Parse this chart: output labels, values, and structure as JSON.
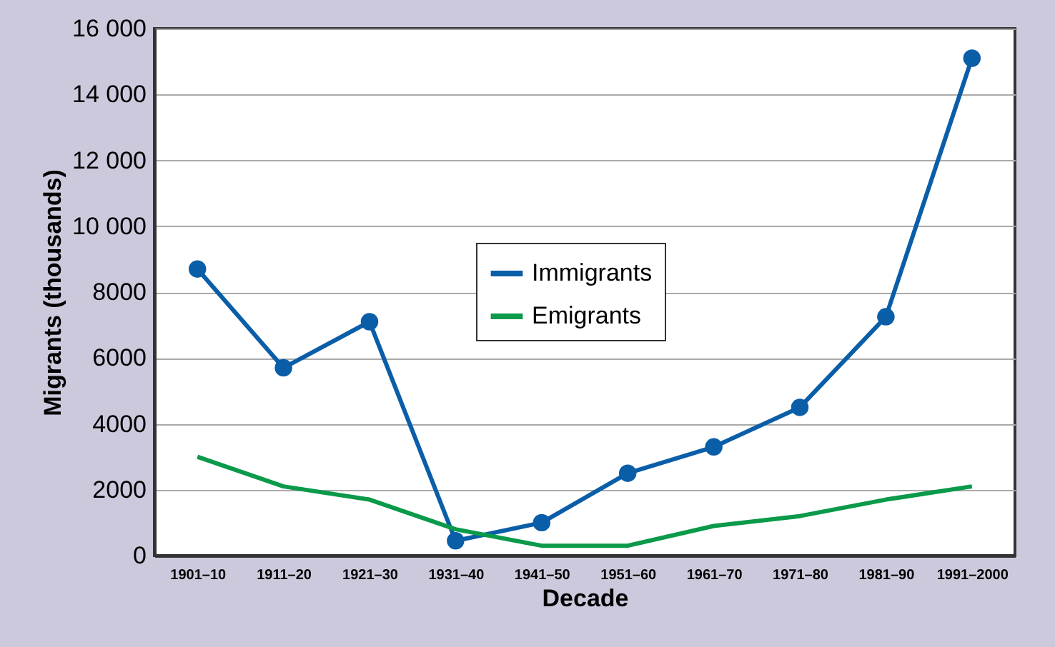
{
  "chart_data": {
    "type": "line",
    "xlabel": "Decade",
    "ylabel": "Migrants (thousands)",
    "categories": [
      "1901–10",
      "1911–20",
      "1921–30",
      "1931–40",
      "1941–50",
      "1951–60",
      "1961–70",
      "1971–80",
      "1981–90",
      "1991–2000"
    ],
    "series": [
      {
        "name": "Immigrants",
        "color": "#0a5ea8",
        "marker": "circle",
        "values": [
          8700,
          5700,
          7100,
          450,
          1000,
          2500,
          3300,
          4500,
          7250,
          15100
        ]
      },
      {
        "name": "Emigrants",
        "color": "#0a9a4a",
        "marker": "none",
        "values": [
          3000,
          2100,
          1700,
          800,
          300,
          300,
          900,
          1200,
          1700,
          2100
        ]
      }
    ],
    "ylim": [
      0,
      16000
    ],
    "yticks": [
      0,
      2000,
      4000,
      6000,
      8000,
      {
        "value": 10000,
        "label": "10 000"
      },
      {
        "value": 12000,
        "label": "12 000"
      },
      {
        "value": 14000,
        "label": "14 000"
      },
      {
        "value": 16000,
        "label": "16 000"
      }
    ],
    "grid": "y",
    "legend": "center",
    "line_style": "solid"
  }
}
